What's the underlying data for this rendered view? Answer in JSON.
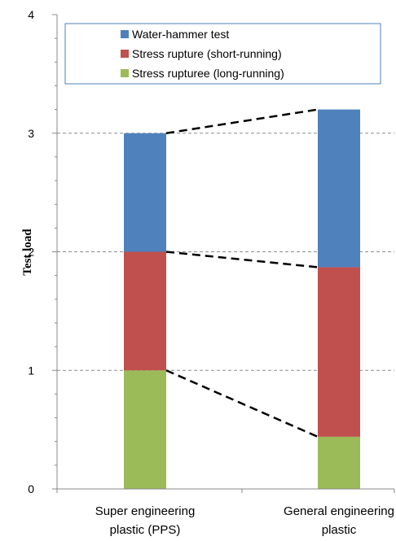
{
  "chart_data": {
    "type": "bar",
    "stacked": true,
    "categories": [
      [
        "Super engineering",
        "plastic (PPS)"
      ],
      [
        "General engineering",
        "plastic"
      ]
    ],
    "series": [
      {
        "name": "Stress ruptureе (long-running)",
        "values": [
          1.0,
          0.44
        ],
        "color": "#9bbb59"
      },
      {
        "name": "Stress rupture (short-running)",
        "values": [
          1.0,
          1.43
        ],
        "color": "#c0504d"
      },
      {
        "name": "Water-hammer test",
        "values": [
          1.0,
          1.33
        ],
        "color": "#4f81bd"
      }
    ],
    "legend_order": [
      2,
      1,
      0
    ],
    "xlabel": "",
    "ylabel": "Test load",
    "ylim": [
      0,
      4
    ],
    "yticks": [
      0,
      1,
      2,
      3,
      4
    ],
    "grid": true,
    "connector_lines": true,
    "legend_position": "top"
  }
}
